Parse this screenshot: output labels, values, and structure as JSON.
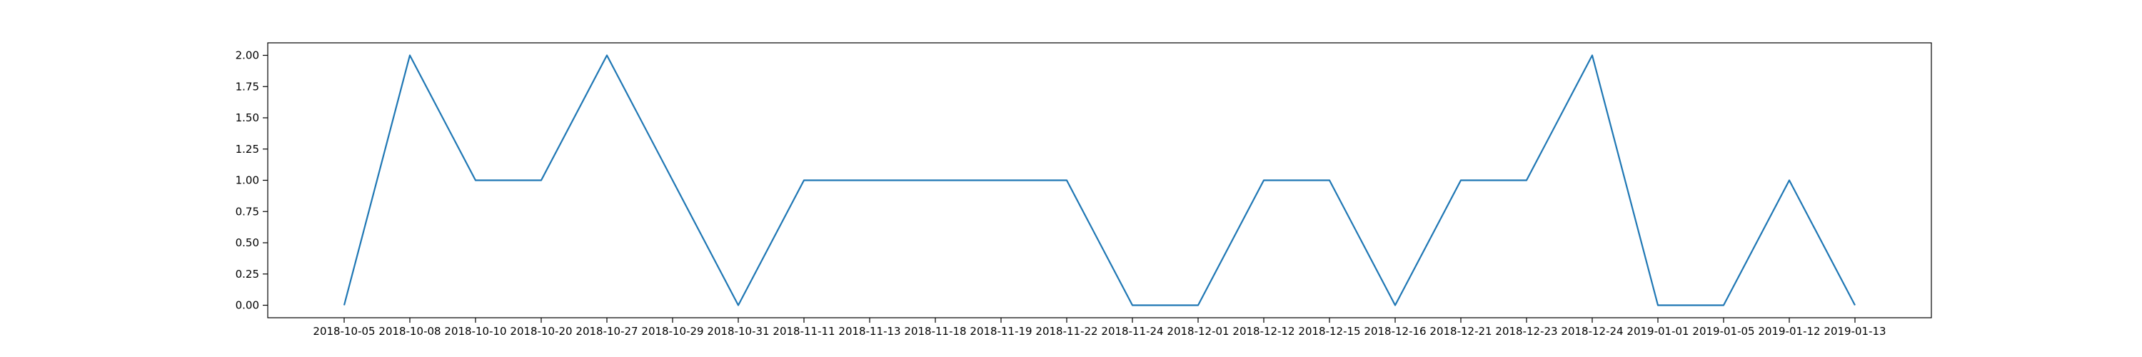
{
  "chart_data": {
    "type": "line",
    "categories": [
      "2018-10-05",
      "2018-10-08",
      "2018-10-10",
      "2018-10-20",
      "2018-10-27",
      "2018-10-29",
      "2018-10-31",
      "2018-11-11",
      "2018-11-13",
      "2018-11-18",
      "2018-11-19",
      "2018-11-22",
      "2018-11-24",
      "2018-12-01",
      "2018-12-12",
      "2018-12-15",
      "2018-12-16",
      "2018-12-21",
      "2018-12-23",
      "2018-12-24",
      "2019-01-01",
      "2019-01-05",
      "2019-01-12",
      "2019-01-13"
    ],
    "series": [
      {
        "values": [
          0,
          2,
          1,
          1,
          2,
          1,
          0,
          1,
          1,
          1,
          1,
          1,
          0,
          0,
          1,
          1,
          0,
          1,
          1,
          2,
          0,
          0,
          1,
          0
        ],
        "color": "#1f77b4"
      }
    ],
    "yticks": [
      "0.00",
      "0.25",
      "0.50",
      "0.75",
      "1.00",
      "1.25",
      "1.50",
      "1.75",
      "2.00"
    ],
    "ylim": [
      -0.1,
      2.1
    ],
    "title": "",
    "xlabel": "",
    "ylabel": "",
    "grid": false,
    "legend": "none"
  }
}
